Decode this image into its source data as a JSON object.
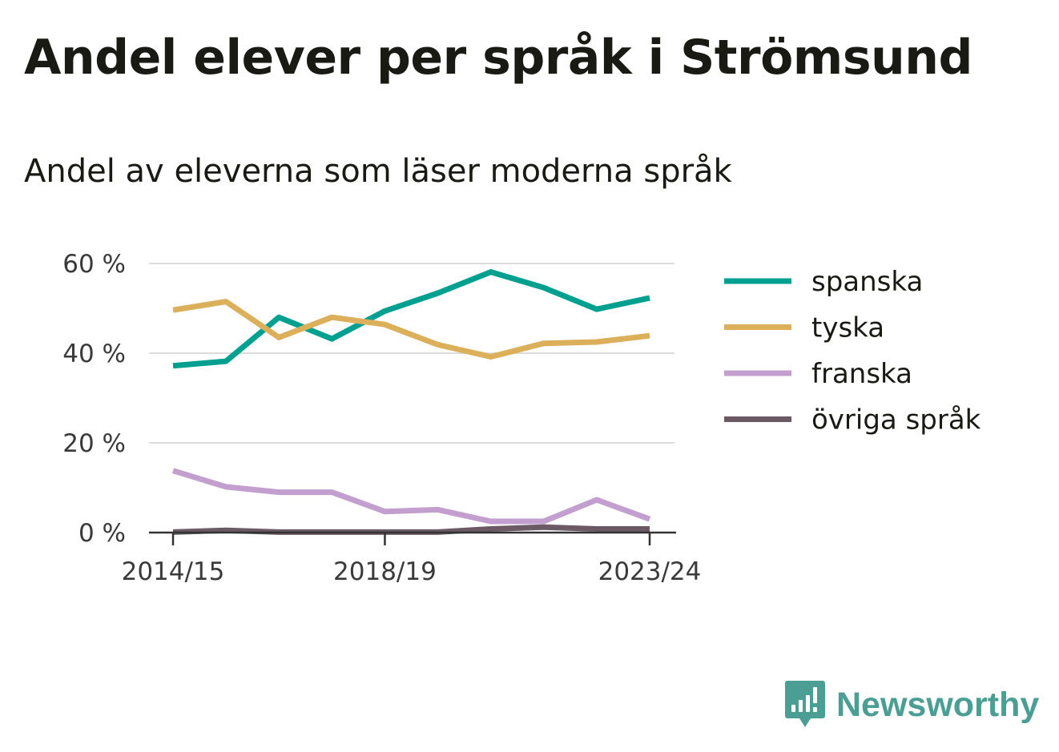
{
  "title": "Andel elever per språk i Strömsund",
  "subtitle": "Andel av eleverna som läser moderna språk",
  "brand": {
    "name": "Newsworthy",
    "color": "#4a9e94",
    "icon": "newsworthy-logo-icon"
  },
  "chart_data": {
    "type": "line",
    "x": [
      "2014/15",
      "2015/16",
      "2016/17",
      "2017/18",
      "2018/19",
      "2019/20",
      "2020/21",
      "2021/22",
      "2022/23",
      "2023/24"
    ],
    "x_tick_labels": [
      "2014/15",
      "2018/19",
      "2023/24"
    ],
    "y_ticks": [
      0,
      20,
      40,
      60
    ],
    "y_tick_labels": [
      "0 %",
      "20 %",
      "40 %",
      "60 %"
    ],
    "ylim": [
      0,
      60
    ],
    "grid": true,
    "legend_position": "right",
    "series": [
      {
        "name": "spanska",
        "color": "#00a091",
        "values": [
          37.2,
          38.2,
          48,
          43.2,
          49.4,
          53.4,
          58.1,
          54.6,
          49.8,
          52.3
        ]
      },
      {
        "name": "tyska",
        "color": "#dcb05a",
        "values": [
          49.6,
          51.5,
          43.5,
          48,
          46.4,
          41.9,
          39.2,
          42.2,
          42.5,
          43.9
        ]
      },
      {
        "name": "franska",
        "color": "#c39fd0",
        "values": [
          13.8,
          10.2,
          9,
          9,
          4.7,
          5.1,
          2.5,
          2.5,
          7.3,
          3
        ]
      },
      {
        "name": "övriga språk",
        "color": "#6b5a64",
        "values": [
          0.1,
          0.5,
          0.1,
          0.1,
          0.1,
          0.1,
          0.8,
          1.2,
          0.8,
          0.8
        ]
      }
    ]
  }
}
